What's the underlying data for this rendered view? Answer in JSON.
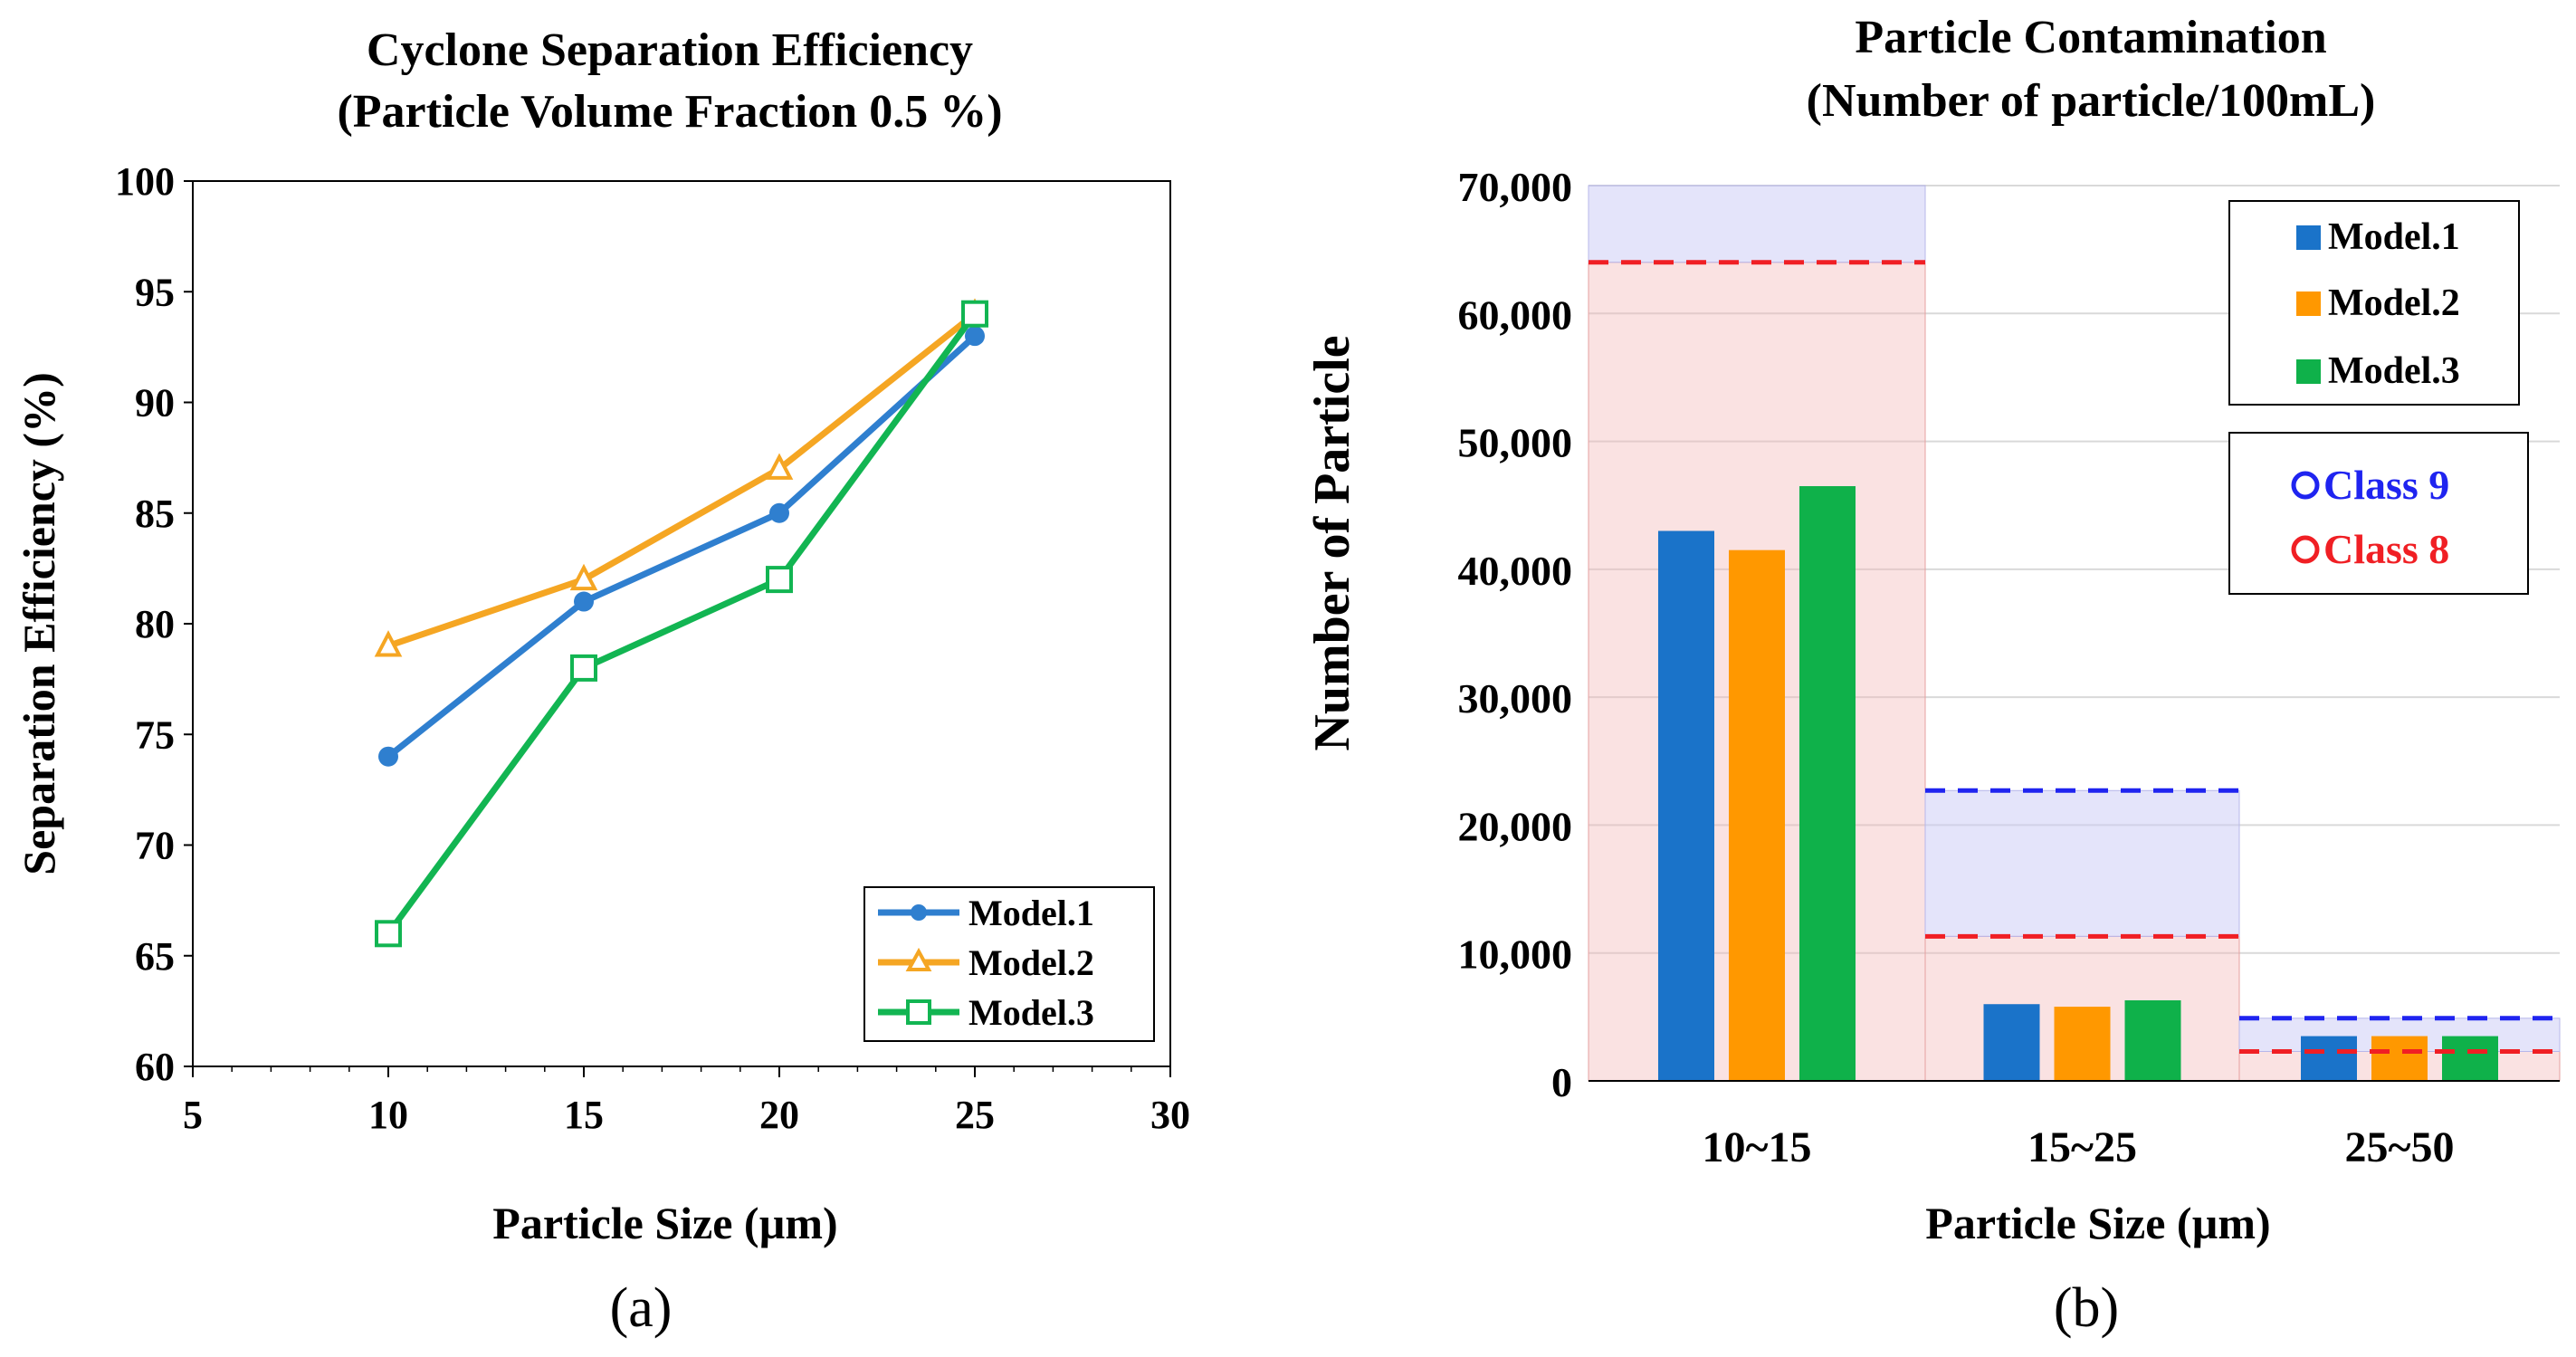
{
  "chart_data": [
    {
      "type": "line",
      "panel_label": "(a)",
      "title": "Cyclone Separation Efficiency",
      "subtitle": "(Particle Volume Fraction 0.5 %)",
      "xlabel": "Particle Size (µm)",
      "ylabel": "Separation Efficiency (%)",
      "xlim": [
        5,
        30
      ],
      "ylim": [
        60,
        100
      ],
      "xticks": [
        5,
        10,
        15,
        20,
        25,
        30
      ],
      "yticks": [
        60,
        65,
        70,
        75,
        80,
        85,
        90,
        95,
        100
      ],
      "grid": false,
      "legend": "bottom-right",
      "x": [
        10,
        15,
        20,
        25
      ],
      "series": [
        {
          "name": "Model.1",
          "marker": "circle",
          "color": "#2f7fcf",
          "values": [
            74,
            81,
            85,
            93
          ]
        },
        {
          "name": "Model.2",
          "marker": "triangle",
          "color": "#f5a623",
          "values": [
            79,
            82,
            87,
            94
          ]
        },
        {
          "name": "Model.3",
          "marker": "square",
          "color": "#12b552",
          "values": [
            66,
            78,
            82,
            94
          ]
        }
      ]
    },
    {
      "type": "bar",
      "panel_label": "(b)",
      "title": "Particle Contamination",
      "subtitle": "(Number of particle/100mL)",
      "xlabel": "Particle Size (µm)",
      "ylabel": "Number of Particle",
      "ylim": [
        0,
        70000
      ],
      "yticks": [
        0,
        10000,
        20000,
        30000,
        40000,
        50000,
        60000,
        70000
      ],
      "ytick_labels": [
        "0",
        "10,000",
        "20,000",
        "30,000",
        "40,000",
        "50,000",
        "60,000",
        "70,000"
      ],
      "grid": true,
      "legend": "top-right",
      "categories": [
        "10~15",
        "15~25",
        "25~50"
      ],
      "series": [
        {
          "name": "Model.1",
          "color": "#1a73c9",
          "values": [
            43000,
            6000,
            3500
          ]
        },
        {
          "name": "Model.2",
          "color": "#ff9800",
          "values": [
            41500,
            5800,
            3500
          ]
        },
        {
          "name": "Model.3",
          "color": "#0fb14a",
          "values": [
            46500,
            6300,
            3500
          ]
        }
      ],
      "class_limits": [
        {
          "name": "Class 9",
          "color": "#1f24f0",
          "values": [
            null,
            22700,
            4900
          ]
        },
        {
          "name": "Class 8",
          "color": "#f01f24",
          "values": [
            64000,
            11300,
            2300
          ]
        }
      ]
    }
  ]
}
